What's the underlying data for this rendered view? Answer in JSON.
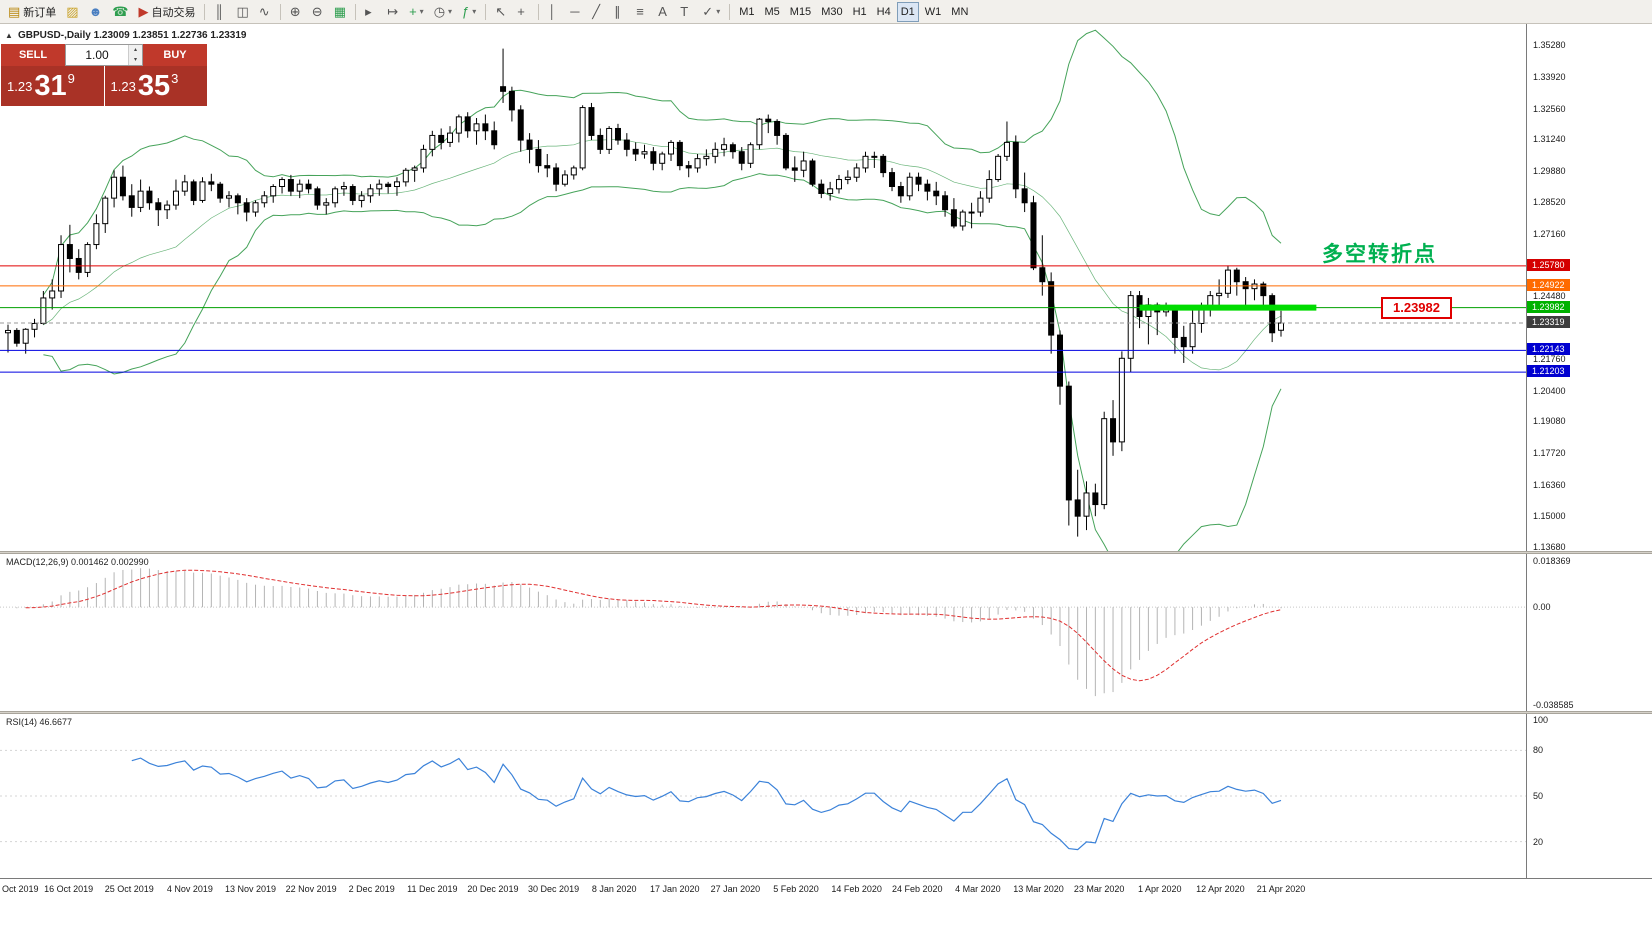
{
  "toolbar": {
    "groups": [
      {
        "items": [
          {
            "name": "new-order-button",
            "glyph": "▤",
            "glyph_color": "#b8860b",
            "label": "新订单"
          },
          {
            "name": "styles-button",
            "glyph": "▨",
            "glyph_color": "#c9a227"
          },
          {
            "name": "accounts-button",
            "glyph": "☻",
            "glyph_color": "#4a7fc1"
          },
          {
            "name": "support-button",
            "glyph": "☎",
            "glyph_color": "#2e9e4f"
          },
          {
            "name": "autotrading-button",
            "glyph": "▶",
            "glyph_color": "#c0392b",
            "label": "自动交易"
          }
        ]
      },
      {
        "items": [
          {
            "name": "bar-chart-button",
            "glyph": "║"
          },
          {
            "name": "candlestick-chart-button",
            "glyph": "◫"
          },
          {
            "name": "line-chart-button",
            "glyph": "∿"
          }
        ]
      },
      {
        "items": [
          {
            "name": "zoom-in-button",
            "glyph": "⊕"
          },
          {
            "name": "zoom-out-button",
            "glyph": "⊖"
          },
          {
            "name": "tile-windows-button",
            "glyph": "▦",
            "glyph_color": "#2e9e4f"
          }
        ]
      },
      {
        "items": [
          {
            "name": "auto-scroll-button",
            "glyph": "▸"
          },
          {
            "name": "chart-shift-button",
            "glyph": "↦"
          },
          {
            "name": "new-chart-button",
            "glyph": "+",
            "glyph_color": "#2e9e4f",
            "dropdown": true
          },
          {
            "name": "profiles-button",
            "glyph": "◷",
            "dropdown": true
          },
          {
            "name": "indicators-button",
            "glyph": "ƒ",
            "glyph_color": "#2e9e4f",
            "dropdown": true
          }
        ]
      },
      {
        "items": [
          {
            "name": "cursor-button",
            "glyph": "↖"
          },
          {
            "name": "crosshair-button",
            "glyph": "+"
          }
        ]
      },
      {
        "items": [
          {
            "name": "vertical-line-button",
            "glyph": "│"
          },
          {
            "name": "horizontal-line-button",
            "glyph": "─"
          },
          {
            "name": "trendline-button",
            "glyph": "╱"
          },
          {
            "name": "channel-button",
            "glyph": "∥"
          },
          {
            "name": "fibonacci-button",
            "glyph": "≡"
          },
          {
            "name": "text-button",
            "glyph": "A"
          },
          {
            "name": "text-label-button",
            "glyph": "T"
          },
          {
            "name": "objects-button",
            "glyph": "✓",
            "dropdown": true
          }
        ]
      },
      {
        "items": [
          {
            "name": "timeframe-m1-button",
            "label": "M1"
          },
          {
            "name": "timeframe-m5-button",
            "label": "M5"
          },
          {
            "name": "timeframe-m15-button",
            "label": "M15"
          },
          {
            "name": "timeframe-m30-button",
            "label": "M30"
          },
          {
            "name": "timeframe-h1-button",
            "label": "H1"
          },
          {
            "name": "timeframe-h4-button",
            "label": "H4"
          },
          {
            "name": "timeframe-d1-button",
            "label": "D1",
            "active": true
          },
          {
            "name": "timeframe-w1-button",
            "label": "W1"
          },
          {
            "name": "timeframe-mn-button",
            "label": "MN"
          }
        ]
      }
    ]
  },
  "trade_panel": {
    "sell_label": "SELL",
    "buy_label": "BUY",
    "volume": "1.00",
    "button_color": "#c0392b",
    "price_bg_color": "#a93226",
    "sell_price": {
      "prefix": "1.23",
      "big": "31",
      "sup": "9"
    },
    "buy_price": {
      "prefix": "1.23",
      "big": "35",
      "sup": "3"
    }
  },
  "chart": {
    "collapse_arrow": "▲",
    "symbol_line": "GBPUSD-,Daily  1.23009 1.23851 1.22736 1.23319",
    "annotation": "多空转折点",
    "annotation_color": "#00b050",
    "price_callout": "1.23982"
  },
  "macd": {
    "header": "MACD(12,26,9) 0.001462 0.002990",
    "histogram_color": "#b4b4b4",
    "signal_color": "#e03030",
    "y_ticks": [
      {
        "v": 0.018369,
        "label": "0.018369"
      },
      {
        "v": 0,
        "label": "0.00"
      },
      {
        "v": -0.038585,
        "label": "-0.038585"
      }
    ]
  },
  "rsi": {
    "header": "RSI(14) 46.6677",
    "line_color": "#3b82d9",
    "levels": [
      80,
      50,
      20
    ],
    "y_ticks": [
      {
        "v": 100,
        "label": "100"
      },
      {
        "v": 80,
        "label": "80"
      },
      {
        "v": 50,
        "label": "50"
      },
      {
        "v": 20,
        "label": "20"
      }
    ]
  },
  "time_axis": [
    "Oct 2019",
    "16 Oct 2019",
    "25 Oct 2019",
    "4 Nov 2019",
    "13 Nov 2019",
    "22 Nov 2019",
    "2 Dec 2019",
    "11 Dec 2019",
    "20 Dec 2019",
    "30 Dec 2019",
    "8 Jan 2020",
    "17 Jan 2020",
    "27 Jan 2020",
    "5 Feb 2020",
    "14 Feb 2020",
    "24 Feb 2020",
    "4 Mar 2020",
    "13 Mar 2020",
    "23 Mar 2020",
    "1 Apr 2020",
    "12 Apr 2020",
    "21 Apr 2020"
  ],
  "chart_data": {
    "type": "candlestick",
    "symbol": "GBPUSD-",
    "timeframe": "Daily",
    "ohlc_last": {
      "open": 1.23009,
      "high": 1.23851,
      "low": 1.22736,
      "close": 1.23319
    },
    "ylim": [
      1.135,
      1.362
    ],
    "y_ticks": [
      1.3528,
      1.3392,
      1.3256,
      1.3124,
      1.2988,
      1.2852,
      1.2716,
      1.2448,
      1.2176,
      1.204,
      1.1908,
      1.1772,
      1.1636,
      1.15,
      1.1368
    ],
    "ohlc": [
      [
        1.229,
        1.2325,
        1.2205,
        1.23
      ],
      [
        1.23,
        1.231,
        1.223,
        1.2245
      ],
      [
        1.2245,
        1.231,
        1.22,
        1.2305
      ],
      [
        1.2305,
        1.235,
        1.227,
        1.233
      ],
      [
        1.233,
        1.247,
        1.2325,
        1.244
      ],
      [
        1.244,
        1.252,
        1.239,
        1.247
      ],
      [
        1.247,
        1.271,
        1.244,
        1.267
      ],
      [
        1.267,
        1.2755,
        1.255,
        1.261
      ],
      [
        1.261,
        1.265,
        1.252,
        1.255
      ],
      [
        1.255,
        1.268,
        1.253,
        1.267
      ],
      [
        1.267,
        1.28,
        1.265,
        1.276
      ],
      [
        1.276,
        1.288,
        1.272,
        1.287
      ],
      [
        1.287,
        1.299,
        1.283,
        1.296
      ],
      [
        1.296,
        1.301,
        1.286,
        1.288
      ],
      [
        1.288,
        1.293,
        1.279,
        1.283
      ],
      [
        1.283,
        1.295,
        1.281,
        1.29
      ],
      [
        1.29,
        1.292,
        1.282,
        1.285
      ],
      [
        1.285,
        1.287,
        1.275,
        1.282
      ],
      [
        1.282,
        1.286,
        1.278,
        1.284
      ],
      [
        1.284,
        1.295,
        1.282,
        1.29
      ],
      [
        1.29,
        1.297,
        1.288,
        1.294
      ],
      [
        1.294,
        1.295,
        1.284,
        1.286
      ],
      [
        1.286,
        1.296,
        1.285,
        1.294
      ],
      [
        1.294,
        1.2975,
        1.29,
        1.293
      ],
      [
        1.293,
        1.294,
        1.285,
        1.287
      ],
      [
        1.287,
        1.29,
        1.283,
        1.288
      ],
      [
        1.288,
        1.289,
        1.28,
        1.285
      ],
      [
        1.285,
        1.287,
        1.277,
        1.281
      ],
      [
        1.281,
        1.286,
        1.279,
        1.285
      ],
      [
        1.285,
        1.29,
        1.283,
        1.288
      ],
      [
        1.288,
        1.293,
        1.285,
        1.292
      ],
      [
        1.292,
        1.296,
        1.289,
        1.295
      ],
      [
        1.295,
        1.297,
        1.288,
        1.29
      ],
      [
        1.29,
        1.295,
        1.287,
        1.293
      ],
      [
        1.293,
        1.295,
        1.289,
        1.291
      ],
      [
        1.291,
        1.292,
        1.282,
        1.284
      ],
      [
        1.284,
        1.287,
        1.28,
        1.285
      ],
      [
        1.285,
        1.292,
        1.283,
        1.291
      ],
      [
        1.291,
        1.294,
        1.288,
        1.292
      ],
      [
        1.292,
        1.293,
        1.284,
        1.286
      ],
      [
        1.286,
        1.29,
        1.283,
        1.288
      ],
      [
        1.288,
        1.293,
        1.285,
        1.291
      ],
      [
        1.291,
        1.295,
        1.288,
        1.293
      ],
      [
        1.293,
        1.294,
        1.289,
        1.292
      ],
      [
        1.292,
        1.296,
        1.288,
        1.294
      ],
      [
        1.294,
        1.3,
        1.292,
        1.299
      ],
      [
        1.299,
        1.301,
        1.294,
        1.3
      ],
      [
        1.3,
        1.31,
        1.298,
        1.308
      ],
      [
        1.308,
        1.316,
        1.305,
        1.314
      ],
      [
        1.314,
        1.317,
        1.308,
        1.311
      ],
      [
        1.311,
        1.318,
        1.309,
        1.315
      ],
      [
        1.315,
        1.323,
        1.311,
        1.322
      ],
      [
        1.322,
        1.324,
        1.313,
        1.316
      ],
      [
        1.316,
        1.3215,
        1.31,
        1.319
      ],
      [
        1.319,
        1.323,
        1.312,
        1.316
      ],
      [
        1.316,
        1.32,
        1.308,
        1.31
      ],
      [
        1.335,
        1.3514,
        1.328,
        1.333
      ],
      [
        1.333,
        1.335,
        1.32,
        1.325
      ],
      [
        1.325,
        1.327,
        1.307,
        1.312
      ],
      [
        1.312,
        1.315,
        1.302,
        1.308
      ],
      [
        1.308,
        1.312,
        1.298,
        1.301
      ],
      [
        1.301,
        1.306,
        1.296,
        1.3
      ],
      [
        1.3,
        1.302,
        1.29,
        1.293
      ],
      [
        1.293,
        1.299,
        1.292,
        1.297
      ],
      [
        1.297,
        1.301,
        1.295,
        1.3
      ],
      [
        1.3,
        1.327,
        1.299,
        1.326
      ],
      [
        1.326,
        1.328,
        1.312,
        1.314
      ],
      [
        1.314,
        1.317,
        1.306,
        1.308
      ],
      [
        1.308,
        1.318,
        1.306,
        1.317
      ],
      [
        1.317,
        1.319,
        1.31,
        1.312
      ],
      [
        1.312,
        1.315,
        1.305,
        1.308
      ],
      [
        1.308,
        1.311,
        1.303,
        1.306
      ],
      [
        1.306,
        1.31,
        1.304,
        1.307
      ],
      [
        1.307,
        1.309,
        1.299,
        1.302
      ],
      [
        1.302,
        1.307,
        1.299,
        1.306
      ],
      [
        1.306,
        1.312,
        1.303,
        1.311
      ],
      [
        1.311,
        1.312,
        1.299,
        1.301
      ],
      [
        1.301,
        1.303,
        1.296,
        1.3
      ],
      [
        1.3,
        1.306,
        1.298,
        1.304
      ],
      [
        1.304,
        1.308,
        1.301,
        1.305
      ],
      [
        1.305,
        1.311,
        1.302,
        1.308
      ],
      [
        1.308,
        1.313,
        1.305,
        1.31
      ],
      [
        1.31,
        1.311,
        1.304,
        1.307
      ],
      [
        1.307,
        1.309,
        1.299,
        1.302
      ],
      [
        1.302,
        1.311,
        1.3,
        1.31
      ],
      [
        1.31,
        1.3215,
        1.308,
        1.321
      ],
      [
        1.321,
        1.323,
        1.315,
        1.32
      ],
      [
        1.32,
        1.321,
        1.31,
        1.314
      ],
      [
        1.314,
        1.315,
        1.299,
        1.3
      ],
      [
        1.3,
        1.305,
        1.294,
        1.299
      ],
      [
        1.299,
        1.307,
        1.296,
        1.303
      ],
      [
        1.303,
        1.304,
        1.292,
        1.293
      ],
      [
        1.293,
        1.295,
        1.287,
        1.289
      ],
      [
        1.289,
        1.294,
        1.286,
        1.291
      ],
      [
        1.291,
        1.297,
        1.289,
        1.295
      ],
      [
        1.295,
        1.299,
        1.293,
        1.296
      ],
      [
        1.296,
        1.302,
        1.294,
        1.3
      ],
      [
        1.3,
        1.307,
        1.298,
        1.305
      ],
      [
        1.305,
        1.307,
        1.3,
        1.305
      ],
      [
        1.305,
        1.306,
        1.296,
        1.298
      ],
      [
        1.298,
        1.3,
        1.29,
        1.292
      ],
      [
        1.292,
        1.294,
        1.285,
        1.288
      ],
      [
        1.288,
        1.298,
        1.286,
        1.296
      ],
      [
        1.296,
        1.298,
        1.29,
        1.293
      ],
      [
        1.293,
        1.295,
        1.286,
        1.29
      ],
      [
        1.29,
        1.294,
        1.284,
        1.288
      ],
      [
        1.288,
        1.29,
        1.279,
        1.282
      ],
      [
        1.282,
        1.287,
        1.274,
        1.275
      ],
      [
        1.275,
        1.282,
        1.273,
        1.281
      ],
      [
        1.281,
        1.285,
        1.274,
        1.281
      ],
      [
        1.281,
        1.29,
        1.279,
        1.287
      ],
      [
        1.287,
        1.299,
        1.285,
        1.295
      ],
      [
        1.295,
        1.306,
        1.294,
        1.305
      ],
      [
        1.305,
        1.32,
        1.303,
        1.311
      ],
      [
        1.311,
        1.314,
        1.287,
        1.291
      ],
      [
        1.291,
        1.298,
        1.281,
        1.285
      ],
      [
        1.285,
        1.288,
        1.256,
        1.257
      ],
      [
        1.257,
        1.271,
        1.245,
        1.251
      ],
      [
        1.251,
        1.255,
        1.22,
        1.228
      ],
      [
        1.228,
        1.23,
        1.198,
        1.206
      ],
      [
        1.206,
        1.208,
        1.146,
        1.157
      ],
      [
        1.157,
        1.17,
        1.1412,
        1.15
      ],
      [
        1.15,
        1.165,
        1.144,
        1.16
      ],
      [
        1.16,
        1.164,
        1.15,
        1.155
      ],
      [
        1.155,
        1.195,
        1.153,
        1.192
      ],
      [
        1.192,
        1.2,
        1.176,
        1.182
      ],
      [
        1.182,
        1.221,
        1.178,
        1.218
      ],
      [
        1.218,
        1.247,
        1.212,
        1.245
      ],
      [
        1.245,
        1.247,
        1.231,
        1.236
      ],
      [
        1.236,
        1.244,
        1.224,
        1.241
      ],
      [
        1.241,
        1.242,
        1.228,
        1.238
      ],
      [
        1.238,
        1.242,
        1.236,
        1.239
      ],
      [
        1.239,
        1.241,
        1.22,
        1.227
      ],
      [
        1.227,
        1.232,
        1.216,
        1.223
      ],
      [
        1.223,
        1.239,
        1.22,
        1.233
      ],
      [
        1.233,
        1.242,
        1.229,
        1.239
      ],
      [
        1.239,
        1.247,
        1.236,
        1.245
      ],
      [
        1.245,
        1.252,
        1.24,
        1.246
      ],
      [
        1.246,
        1.258,
        1.244,
        1.256
      ],
      [
        1.256,
        1.257,
        1.245,
        1.251
      ],
      [
        1.251,
        1.253,
        1.241,
        1.248
      ],
      [
        1.248,
        1.252,
        1.243,
        1.25
      ],
      [
        1.25,
        1.251,
        1.24,
        1.245
      ],
      [
        1.245,
        1.246,
        1.225,
        1.229
      ],
      [
        1.23009,
        1.23851,
        1.22736,
        1.23319
      ]
    ],
    "overlays": {
      "bollinger": {
        "period": 20,
        "deviation": 2,
        "color": "#46a35a"
      },
      "hlines": [
        {
          "price": 1.2578,
          "color": "#e00000",
          "label": "1.25780",
          "tag_bg": "#d40000"
        },
        {
          "price": 1.24922,
          "color": "#ff6a00",
          "label": "1.24922",
          "tag_bg": "#ff6a00"
        },
        {
          "price": 1.23982,
          "color": "#00a000",
          "label": "1.23982",
          "tag_bg": "#00b200"
        },
        {
          "price": 1.22143,
          "color": "#0000e0",
          "label": "1.22143",
          "tag_bg": "#0000d0"
        },
        {
          "price": 1.21203,
          "color": "#0000e0",
          "label": "1.21203",
          "tag_bg": "#0000d0"
        }
      ],
      "current_price": {
        "price": 1.23319,
        "label": "1.23319",
        "tag_bg": "#3d3d3d"
      },
      "thick_segment": {
        "price": 1.23982,
        "from_index": 128,
        "to_index": 148,
        "color": "#00dc00",
        "width": 6
      }
    }
  }
}
